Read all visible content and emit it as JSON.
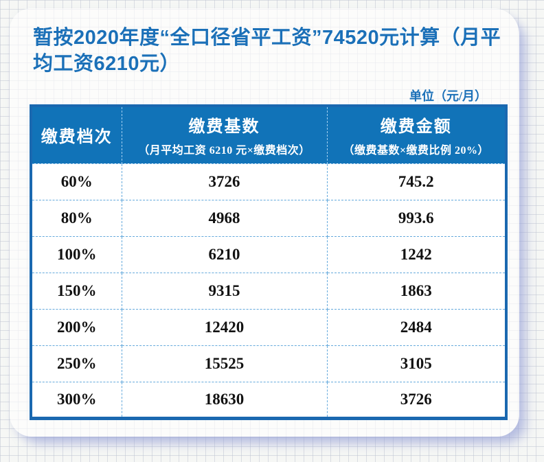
{
  "title": "暂按2020年度“全口径省平工资”74520元计算（月平均工资6210元）",
  "unit_label": "单位（元/月）",
  "table": {
    "columns": [
      {
        "label": "缴费档次",
        "sublabel": ""
      },
      {
        "label": "缴费基数",
        "sublabel": "（月平均工资 6210 元×缴费档次）"
      },
      {
        "label": "缴费金额",
        "sublabel": "（缴费基数×缴费比例 20%）"
      }
    ],
    "rows": [
      {
        "tier": "60%",
        "base": "3726",
        "amount": "745.2"
      },
      {
        "tier": "80%",
        "base": "4968",
        "amount": "993.6"
      },
      {
        "tier": "100%",
        "base": "6210",
        "amount": "1242"
      },
      {
        "tier": "150%",
        "base": "9315",
        "amount": "1863"
      },
      {
        "tier": "200%",
        "base": "12420",
        "amount": "2484"
      },
      {
        "tier": "250%",
        "base": "15525",
        "amount": "3105"
      },
      {
        "tier": "300%",
        "base": "18630",
        "amount": "3726"
      }
    ]
  },
  "chart_data": {
    "type": "table",
    "title": "暂按2020年度“全口径省平工资”74520元计算（月平均工资6210元）",
    "unit": "元/月",
    "categories": [
      "60%",
      "80%",
      "100%",
      "150%",
      "200%",
      "250%",
      "300%"
    ],
    "series": [
      {
        "name": "缴费基数",
        "values": [
          3726,
          4968,
          6210,
          9315,
          12420,
          15525,
          18630
        ]
      },
      {
        "name": "缴费金额",
        "values": [
          745.2,
          993.6,
          1242,
          1863,
          2484,
          3105,
          3726
        ]
      }
    ]
  },
  "colors": {
    "accent_blue": "#1b70b8",
    "header_bg": "#1173b8",
    "border_blue": "#1a68b0",
    "dash_blue": "#64a9dc",
    "ink": "#121212"
  }
}
